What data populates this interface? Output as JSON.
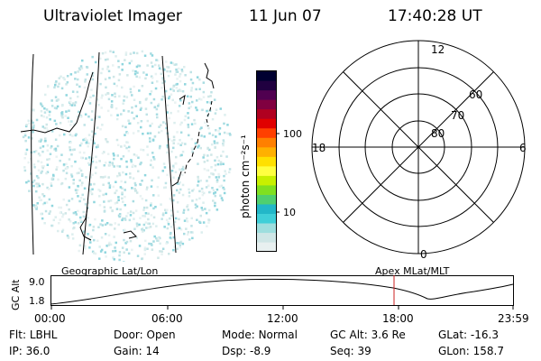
{
  "header": {
    "instrument": "Ultraviolet Imager",
    "date": "11 Jun 07",
    "time": "17:40:28 UT"
  },
  "colorbar": {
    "label": "photon cm⁻²s⁻¹",
    "ticks": [
      "100",
      "10"
    ],
    "colors": [
      "#e8f0f0",
      "#cfe6e6",
      "#9edede",
      "#3fcfd8",
      "#22b7c8",
      "#4fcf6f",
      "#80e020",
      "#c8f000",
      "#ffff40",
      "#ffe000",
      "#ffb000",
      "#ff8000",
      "#ff4000",
      "#e00000",
      "#b00020",
      "#800040",
      "#500050",
      "#200040",
      "#000030"
    ]
  },
  "polar": {
    "lat_labels": [
      "80",
      "70",
      "60"
    ],
    "mlt_labels": {
      "top": "12",
      "bottom": "0",
      "left": "18",
      "right": "6"
    }
  },
  "timeline": {
    "left_title": "Geographic Lat/Lon",
    "right_title": "Apex MLat/MLT",
    "y_axis_label": "GC Alt",
    "y_ticks": [
      "9.0",
      "1.8"
    ],
    "x_ticks": [
      "00:00",
      "06:00",
      "12:00",
      "18:00",
      "23:59"
    ],
    "marker_color": "#cc2222"
  },
  "status": {
    "row1": [
      {
        "label": "Flt:",
        "value": "LBHL"
      },
      {
        "label": "Door:",
        "value": "Open"
      },
      {
        "label": "Mode:",
        "value": "Normal"
      },
      {
        "label": "GC Alt:",
        "value": "3.6 Re"
      },
      {
        "label": "GLat:",
        "value": "-16.3"
      }
    ],
    "row2": [
      {
        "label": "IP:",
        "value": "36.0"
      },
      {
        "label": "Gain:",
        "value": "14"
      },
      {
        "label": "Dsp:",
        "value": "-8.9"
      },
      {
        "label": "Seq:",
        "value": "39"
      },
      {
        "label": "GLon:",
        "value": "158.7"
      }
    ]
  }
}
